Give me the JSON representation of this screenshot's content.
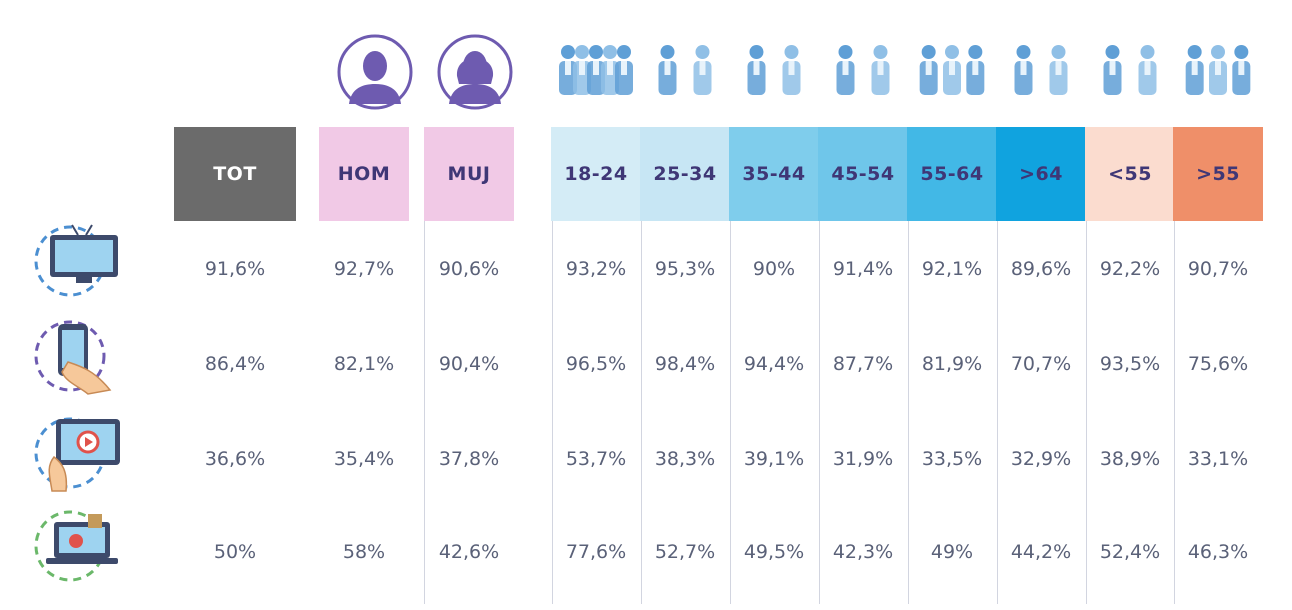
{
  "chart_data": {
    "type": "table",
    "columns": [
      {
        "label": "TOT",
        "bg": "#6b6b6b",
        "fg": "#ffffff"
      },
      {
        "label": "HOM",
        "bg": "#f1c9e6",
        "fg": "#3f3776"
      },
      {
        "label": "MUJ",
        "bg": "#f1c9e6",
        "fg": "#3f3776"
      },
      {
        "label": "18-24",
        "bg": "#d4ecf6",
        "fg": "#3f3776"
      },
      {
        "label": "25-34",
        "bg": "#c7e6f4",
        "fg": "#3f3776"
      },
      {
        "label": "35-44",
        "bg": "#7fcdec",
        "fg": "#3f3776"
      },
      {
        "label": "45-54",
        "bg": "#6fc6ea",
        "fg": "#3f3776"
      },
      {
        "label": "55-64",
        "bg": "#42b8e6",
        "fg": "#3f3776"
      },
      {
        "label": ">64",
        "bg": "#10a3df",
        "fg": "#3f3776"
      },
      {
        "label": "<55",
        "bg": "#fbdccf",
        "fg": "#3f3776"
      },
      {
        "label": ">55",
        "bg": "#ef8f69",
        "fg": "#3f3776"
      }
    ],
    "rows": [
      {
        "icon": "tv-icon",
        "values": [
          "91,6%",
          "92,7%",
          "90,6%",
          "93,2%",
          "95,3%",
          "90%",
          "91,4%",
          "92,1%",
          "89,6%",
          "92,2%",
          "90,7%"
        ]
      },
      {
        "icon": "smartphone-icon",
        "values": [
          "86,4%",
          "82,1%",
          "90,4%",
          "96,5%",
          "98,4%",
          "94,4%",
          "87,7%",
          "81,9%",
          "70,7%",
          "93,5%",
          "75,6%"
        ]
      },
      {
        "icon": "tablet-icon",
        "values": [
          "36,6%",
          "35,4%",
          "37,8%",
          "53,7%",
          "38,3%",
          "39,1%",
          "31,9%",
          "33,5%",
          "32,9%",
          "38,9%",
          "33,1%"
        ]
      },
      {
        "icon": "laptop-icon",
        "values": [
          "50%",
          "58%",
          "42,6%",
          "77,6%",
          "52,7%",
          "49,5%",
          "42,3%",
          "49%",
          "44,2%",
          "52,4%",
          "46,3%"
        ]
      }
    ],
    "header_icons": [
      "man-icon",
      "woman-icon",
      "group-18-24-icon",
      "group-25-34-icon",
      "group-35-44-icon",
      "group-45-54-icon",
      "group-55-64-icon",
      "group-over-64-icon",
      "group-under-55-icon",
      "group-over-55-icon"
    ],
    "colors": {
      "value_text": "#5a6178",
      "divider": "#d2d5e0",
      "icon_purple": "#6e5bb0",
      "icon_blue": "#4b8fd1"
    }
  }
}
